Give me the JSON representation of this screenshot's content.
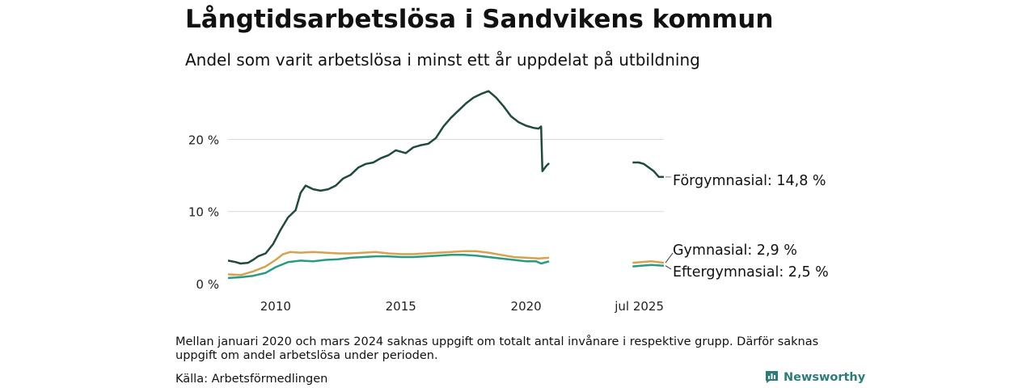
{
  "title": "Långtidsarbetslösa i Sandvikens kommun",
  "subtitle": "Andel som varit arbetslösa i minst ett år uppdelat på utbildning",
  "note": "Mellan januari 2020 och mars 2024 saknas uppgift om totalt antal invånare i respektive grupp. Därför saknas uppgift om andel arbetslösa under perioden.",
  "source": "Källa: Arbetsförmedlingen",
  "brand": {
    "name": "Newsworthy",
    "icon": "chart-bars-icon",
    "color": "#2a7d7a"
  },
  "chart_data": {
    "type": "line",
    "title": "Långtidsarbetslösa i Sandvikens kommun",
    "subtitle": "Andel som varit arbetslösa i minst ett år uppdelat på utbildning",
    "x_unit": "year",
    "xlim": [
      2008.1,
      2025.5
    ],
    "ylim": [
      0,
      27
    ],
    "grid": true,
    "x_ticks": [
      {
        "value": 2010,
        "label": "2010"
      },
      {
        "value": 2015,
        "label": "2015"
      },
      {
        "value": 2020,
        "label": "2020"
      },
      {
        "value": 2025.5,
        "label": "jul 2025"
      }
    ],
    "y_ticks": [
      {
        "value": 0,
        "label": "0 %"
      },
      {
        "value": 10,
        "label": "10 %"
      },
      {
        "value": 20,
        "label": "20 %"
      }
    ],
    "gap": {
      "from": 2020.92,
      "to": 2024.25
    },
    "series": [
      {
        "name": "Förgymnasial",
        "label": "Förgymnasial: 14,8 %",
        "color": "#1f4a3e",
        "segments": [
          [
            [
              2008.1,
              3.2
            ],
            [
              2008.4,
              3.0
            ],
            [
              2008.6,
              2.8
            ],
            [
              2008.9,
              2.9
            ],
            [
              2009.1,
              3.3
            ],
            [
              2009.3,
              3.8
            ],
            [
              2009.6,
              4.2
            ],
            [
              2009.9,
              5.5
            ],
            [
              2010.2,
              7.5
            ],
            [
              2010.5,
              9.2
            ],
            [
              2010.8,
              10.2
            ],
            [
              2011.0,
              12.6
            ],
            [
              2011.2,
              13.6
            ],
            [
              2011.5,
              13.1
            ],
            [
              2011.8,
              12.9
            ],
            [
              2012.1,
              13.1
            ],
            [
              2012.4,
              13.6
            ],
            [
              2012.7,
              14.6
            ],
            [
              2013.0,
              15.1
            ],
            [
              2013.3,
              16.1
            ],
            [
              2013.6,
              16.6
            ],
            [
              2013.9,
              16.8
            ],
            [
              2014.2,
              17.4
            ],
            [
              2014.5,
              17.8
            ],
            [
              2014.8,
              18.5
            ],
            [
              2015.2,
              18.1
            ],
            [
              2015.5,
              18.9
            ],
            [
              2015.8,
              19.2
            ],
            [
              2016.1,
              19.4
            ],
            [
              2016.4,
              20.2
            ],
            [
              2016.7,
              21.8
            ],
            [
              2017.0,
              23.0
            ],
            [
              2017.3,
              24.0
            ],
            [
              2017.6,
              25.0
            ],
            [
              2017.9,
              25.8
            ],
            [
              2018.2,
              26.3
            ],
            [
              2018.5,
              26.7
            ],
            [
              2018.8,
              25.8
            ],
            [
              2019.1,
              24.6
            ],
            [
              2019.4,
              23.2
            ],
            [
              2019.7,
              22.4
            ],
            [
              2020.0,
              21.9
            ],
            [
              2020.3,
              21.6
            ],
            [
              2020.5,
              21.5
            ],
            [
              2020.6,
              21.8
            ],
            [
              2020.65,
              15.6
            ],
            [
              2020.8,
              16.3
            ],
            [
              2020.92,
              16.7
            ]
          ],
          [
            [
              2024.25,
              16.8
            ],
            [
              2024.5,
              16.8
            ],
            [
              2024.7,
              16.6
            ],
            [
              2024.9,
              16.1
            ],
            [
              2025.1,
              15.6
            ],
            [
              2025.3,
              14.8
            ],
            [
              2025.5,
              14.8
            ]
          ]
        ]
      },
      {
        "name": "Gymnasial",
        "label": "Gymnasial:  2,9 %",
        "color": "#d6a24e",
        "segments": [
          [
            [
              2008.1,
              1.3
            ],
            [
              2008.6,
              1.2
            ],
            [
              2009.1,
              1.7
            ],
            [
              2009.6,
              2.4
            ],
            [
              2010.0,
              3.3
            ],
            [
              2010.3,
              4.1
            ],
            [
              2010.6,
              4.4
            ],
            [
              2011.0,
              4.3
            ],
            [
              2011.5,
              4.4
            ],
            [
              2012.0,
              4.3
            ],
            [
              2012.5,
              4.2
            ],
            [
              2013.0,
              4.2
            ],
            [
              2013.5,
              4.3
            ],
            [
              2014.0,
              4.4
            ],
            [
              2014.5,
              4.2
            ],
            [
              2015.0,
              4.1
            ],
            [
              2015.5,
              4.1
            ],
            [
              2016.0,
              4.2
            ],
            [
              2016.5,
              4.3
            ],
            [
              2017.0,
              4.4
            ],
            [
              2017.5,
              4.5
            ],
            [
              2018.0,
              4.5
            ],
            [
              2018.5,
              4.3
            ],
            [
              2019.0,
              4.0
            ],
            [
              2019.5,
              3.7
            ],
            [
              2020.0,
              3.6
            ],
            [
              2020.5,
              3.5
            ],
            [
              2020.92,
              3.6
            ]
          ],
          [
            [
              2024.25,
              2.9
            ],
            [
              2024.6,
              3.0
            ],
            [
              2025.0,
              3.1
            ],
            [
              2025.5,
              2.9
            ]
          ]
        ]
      },
      {
        "name": "Eftergymnasial",
        "label": "Eftergymnasial:  2,5 %",
        "color": "#2a9a85",
        "segments": [
          [
            [
              2008.1,
              0.8
            ],
            [
              2008.6,
              0.9
            ],
            [
              2009.1,
              1.1
            ],
            [
              2009.6,
              1.5
            ],
            [
              2010.0,
              2.3
            ],
            [
              2010.5,
              3.0
            ],
            [
              2011.0,
              3.2
            ],
            [
              2011.5,
              3.1
            ],
            [
              2012.0,
              3.3
            ],
            [
              2012.5,
              3.4
            ],
            [
              2013.0,
              3.6
            ],
            [
              2013.5,
              3.7
            ],
            [
              2014.0,
              3.8
            ],
            [
              2014.5,
              3.8
            ],
            [
              2015.0,
              3.7
            ],
            [
              2015.5,
              3.7
            ],
            [
              2016.0,
              3.8
            ],
            [
              2016.5,
              3.9
            ],
            [
              2017.0,
              4.0
            ],
            [
              2017.5,
              4.0
            ],
            [
              2018.0,
              3.9
            ],
            [
              2018.5,
              3.7
            ],
            [
              2019.0,
              3.5
            ],
            [
              2019.5,
              3.3
            ],
            [
              2020.0,
              3.1
            ],
            [
              2020.4,
              3.1
            ],
            [
              2020.6,
              2.8
            ],
            [
              2020.92,
              3.1
            ]
          ],
          [
            [
              2024.25,
              2.4
            ],
            [
              2024.6,
              2.5
            ],
            [
              2025.0,
              2.6
            ],
            [
              2025.5,
              2.5
            ]
          ]
        ]
      }
    ]
  }
}
